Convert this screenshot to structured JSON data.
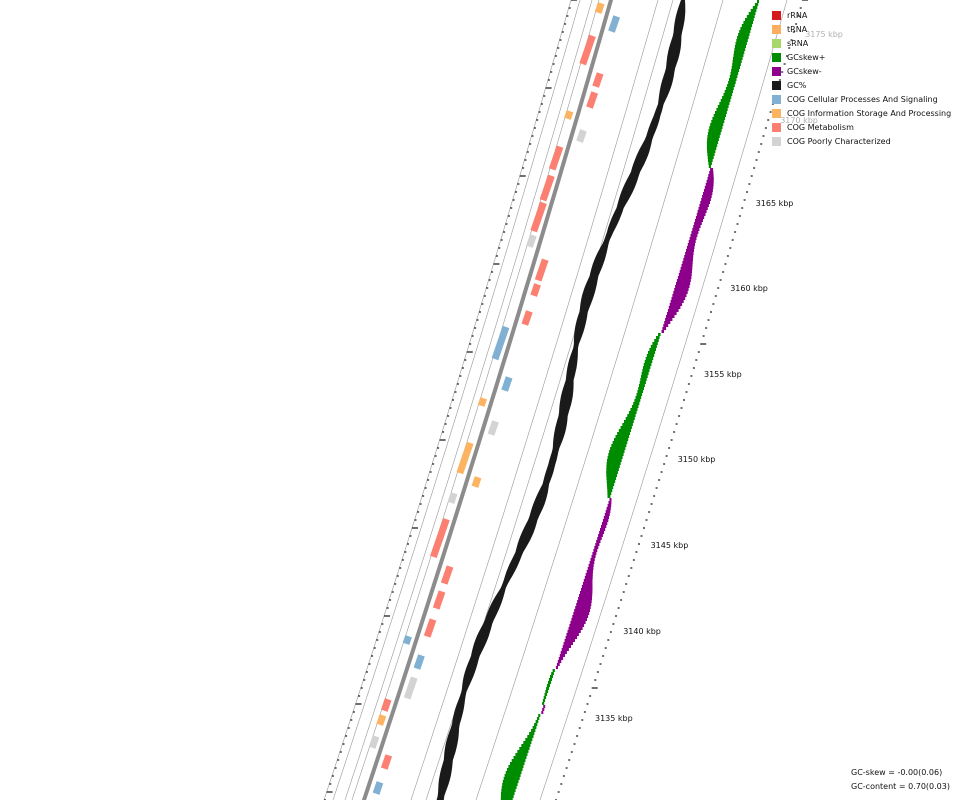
{
  "legend": [
    {
      "label": "rRNA",
      "color": "#d7191c"
    },
    {
      "label": "tRNA",
      "color": "#fdae61"
    },
    {
      "label": "sRNA",
      "color": "#a6d96a"
    },
    {
      "label": "GCskew+",
      "color": "#008c00"
    },
    {
      "label": "GCskew-",
      "color": "#8c008c"
    },
    {
      "label": "GC%",
      "color": "#1a1a1a"
    },
    {
      "label": "COG Cellular Processes And Signaling",
      "color": "#80b1d3"
    },
    {
      "label": "COG Information Storage And Processing",
      "color": "#fdb462"
    },
    {
      "label": "COG Metabolism",
      "color": "#fb8072"
    },
    {
      "label": "COG Poorly Characterized",
      "color": "#d3d3d3"
    }
  ],
  "position_ticks": [
    {
      "label": "3135 kbp",
      "kbp": 3135
    },
    {
      "label": "3140 kbp",
      "kbp": 3140
    },
    {
      "label": "3145 kbp",
      "kbp": 3145
    },
    {
      "label": "3150 kbp",
      "kbp": 3150
    },
    {
      "label": "3155 kbp",
      "kbp": 3155
    },
    {
      "label": "3160 kbp",
      "kbp": 3160
    },
    {
      "label": "3165 kbp",
      "kbp": 3165
    },
    {
      "label": "3170 kbp",
      "kbp": 3170,
      "faded": true
    },
    {
      "label": "3175 kbp",
      "kbp": 3175,
      "faded": true
    }
  ],
  "stats": {
    "gc_skew": "GC-skew = -0.00(0.06)",
    "gc_content": "GC-content = 0.70(0.03)"
  },
  "colors": {
    "backbone": "#8c8c8c",
    "guide_line": "#9a9a9a",
    "gc_percent": "#1a1a1a",
    "skew_positive": "#008c00",
    "skew_negative": "#8c008c"
  }
}
